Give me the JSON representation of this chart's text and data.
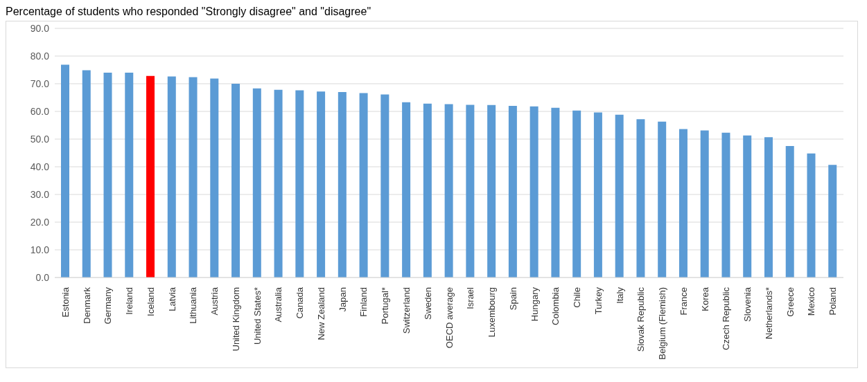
{
  "chart_data": {
    "type": "bar",
    "title": "Percentage of students who responded \"Strongly disagree\" and \"disagree\"",
    "categories": [
      "Estonia",
      "Denmark",
      "Germany",
      "Ireland",
      "Iceland",
      "Latvia",
      "Lithuania",
      "Austria",
      "United Kingdom",
      "United States*",
      "Australia",
      "Canada",
      "New Zealand",
      "Japan",
      "Finland",
      "Portugal*",
      "Switzerland",
      "Sweden",
      "OECD average",
      "Israel",
      "Luxembourg",
      "Spain",
      "Hungary",
      "Colombia",
      "Chile",
      "Turkey",
      "Italy",
      "Slovak Republic",
      "Belgium (Flemish)",
      "France",
      "Korea",
      "Czech Republic",
      "Slovenia",
      "Netherlands*",
      "Greece",
      "Mexico",
      "Poland"
    ],
    "values": [
      76.9,
      74.9,
      74.0,
      74.0,
      72.8,
      72.6,
      72.4,
      71.9,
      70.0,
      68.3,
      67.8,
      67.6,
      67.2,
      67.0,
      66.6,
      66.1,
      63.3,
      62.8,
      62.6,
      62.4,
      62.3,
      62.0,
      61.8,
      61.3,
      60.3,
      59.6,
      58.8,
      57.2,
      56.3,
      53.6,
      53.1,
      52.3,
      51.3,
      50.7,
      47.5,
      44.8,
      40.7
    ],
    "colors": [
      "#5b9bd5",
      "#5b9bd5",
      "#5b9bd5",
      "#5b9bd5",
      "#ff0000",
      "#5b9bd5",
      "#5b9bd5",
      "#5b9bd5",
      "#5b9bd5",
      "#5b9bd5",
      "#5b9bd5",
      "#5b9bd5",
      "#5b9bd5",
      "#5b9bd5",
      "#5b9bd5",
      "#5b9bd5",
      "#5b9bd5",
      "#5b9bd5",
      "#5b9bd5",
      "#5b9bd5",
      "#5b9bd5",
      "#5b9bd5",
      "#5b9bd5",
      "#5b9bd5",
      "#5b9bd5",
      "#5b9bd5",
      "#5b9bd5",
      "#5b9bd5",
      "#5b9bd5",
      "#5b9bd5",
      "#5b9bd5",
      "#5b9bd5",
      "#5b9bd5",
      "#5b9bd5",
      "#5b9bd5",
      "#5b9bd5",
      "#5b9bd5"
    ],
    "ylim": [
      0,
      90
    ],
    "yticks": [
      {
        "value": 0,
        "label": "0.0"
      },
      {
        "value": 10,
        "label": "10.0"
      },
      {
        "value": 20,
        "label": "20.0"
      },
      {
        "value": 30,
        "label": "30.0"
      },
      {
        "value": 40,
        "label": "40.0"
      },
      {
        "value": 50,
        "label": "50.0"
      },
      {
        "value": 60,
        "label": "60.0"
      },
      {
        "value": 70,
        "label": "70.0"
      },
      {
        "value": 80,
        "label": "80.0"
      },
      {
        "value": 90,
        "label": "90.0"
      }
    ],
    "grid": "y"
  }
}
